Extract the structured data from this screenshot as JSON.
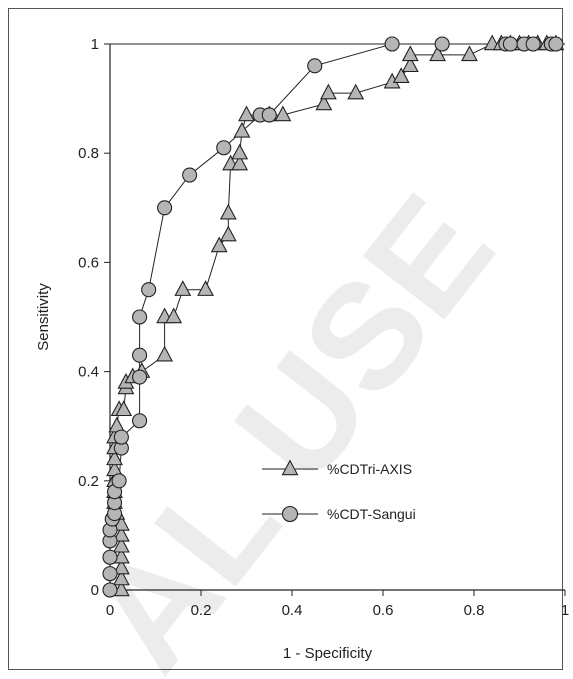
{
  "chart_data": {
    "type": "line",
    "title": "",
    "xlabel": "1 - Specificity",
    "ylabel": "Sensitivity",
    "xlim": [
      0,
      1
    ],
    "ylim": [
      0,
      1
    ],
    "xticks": [
      {
        "value": 0,
        "label": "0"
      },
      {
        "value": 0.2,
        "label": "0.2"
      },
      {
        "value": 0.4,
        "label": "0.4"
      },
      {
        "value": 0.6,
        "label": "0.6"
      },
      {
        "value": 0.8,
        "label": "0.8"
      },
      {
        "value": 1,
        "label": "1"
      }
    ],
    "yticks": [
      {
        "value": 0,
        "label": "0"
      },
      {
        "value": 0.2,
        "label": "0.2"
      },
      {
        "value": 0.4,
        "label": "0.4"
      },
      {
        "value": 0.6,
        "label": "0.6"
      },
      {
        "value": 0.8,
        "label": "0.8"
      },
      {
        "value": 1,
        "label": "1"
      }
    ],
    "grid": false,
    "legend_position": "center",
    "series": [
      {
        "name": "%CDTri-AXIS",
        "marker": "triangle",
        "color": "#b5b5b5",
        "points": [
          [
            0.025,
            0
          ],
          [
            0.025,
            0.02
          ],
          [
            0.025,
            0.04
          ],
          [
            0.025,
            0.06
          ],
          [
            0.025,
            0.08
          ],
          [
            0.025,
            0.1
          ],
          [
            0.025,
            0.12
          ],
          [
            0.015,
            0.14
          ],
          [
            0.01,
            0.16
          ],
          [
            0.01,
            0.18
          ],
          [
            0.01,
            0.2
          ],
          [
            0.01,
            0.22
          ],
          [
            0.01,
            0.24
          ],
          [
            0.01,
            0.26
          ],
          [
            0.01,
            0.28
          ],
          [
            0.015,
            0.3
          ],
          [
            0.02,
            0.33
          ],
          [
            0.03,
            0.33
          ],
          [
            0.035,
            0.37
          ],
          [
            0.035,
            0.38
          ],
          [
            0.05,
            0.39
          ],
          [
            0.07,
            0.4
          ],
          [
            0.12,
            0.43
          ],
          [
            0.12,
            0.5
          ],
          [
            0.14,
            0.5
          ],
          [
            0.16,
            0.55
          ],
          [
            0.21,
            0.55
          ],
          [
            0.24,
            0.63
          ],
          [
            0.26,
            0.65
          ],
          [
            0.26,
            0.69
          ],
          [
            0.265,
            0.78
          ],
          [
            0.285,
            0.78
          ],
          [
            0.285,
            0.8
          ],
          [
            0.29,
            0.84
          ],
          [
            0.3,
            0.87
          ],
          [
            0.35,
            0.87
          ],
          [
            0.38,
            0.87
          ],
          [
            0.47,
            0.89
          ],
          [
            0.48,
            0.91
          ],
          [
            0.54,
            0.91
          ],
          [
            0.62,
            0.93
          ],
          [
            0.64,
            0.94
          ],
          [
            0.66,
            0.96
          ],
          [
            0.66,
            0.98
          ],
          [
            0.72,
            0.98
          ],
          [
            0.79,
            0.98
          ],
          [
            0.84,
            1.0
          ],
          [
            0.86,
            1.0
          ],
          [
            0.88,
            1.0
          ],
          [
            0.9,
            1.0
          ],
          [
            0.92,
            1.0
          ],
          [
            0.94,
            1.0
          ],
          [
            0.96,
            1.0
          ],
          [
            0.98,
            1.0
          ]
        ]
      },
      {
        "name": "%CDT-Sangui",
        "marker": "circle",
        "color": "#b5b5b5",
        "points": [
          [
            0,
            0
          ],
          [
            0,
            0.03
          ],
          [
            0,
            0.06
          ],
          [
            0,
            0.09
          ],
          [
            0,
            0.11
          ],
          [
            0.005,
            0.13
          ],
          [
            0.01,
            0.14
          ],
          [
            0.01,
            0.16
          ],
          [
            0.01,
            0.18
          ],
          [
            0.02,
            0.2
          ],
          [
            0.025,
            0.26
          ],
          [
            0.025,
            0.28
          ],
          [
            0.065,
            0.31
          ],
          [
            0.065,
            0.39
          ],
          [
            0.065,
            0.43
          ],
          [
            0.065,
            0.5
          ],
          [
            0.085,
            0.55
          ],
          [
            0.12,
            0.7
          ],
          [
            0.175,
            0.76
          ],
          [
            0.25,
            0.81
          ],
          [
            0.33,
            0.87
          ],
          [
            0.35,
            0.87
          ],
          [
            0.45,
            0.96
          ],
          [
            0.62,
            1.0
          ],
          [
            0.73,
            1.0
          ],
          [
            0.87,
            1.0
          ],
          [
            0.88,
            1.0
          ],
          [
            0.91,
            1.0
          ],
          [
            0.93,
            1.0
          ],
          [
            0.97,
            1.0
          ],
          [
            0.98,
            1.0
          ]
        ]
      }
    ],
    "reference_line": {
      "points": [
        [
          0,
          1
        ],
        [
          1,
          1
        ]
      ]
    },
    "watermark": "AL USE"
  }
}
